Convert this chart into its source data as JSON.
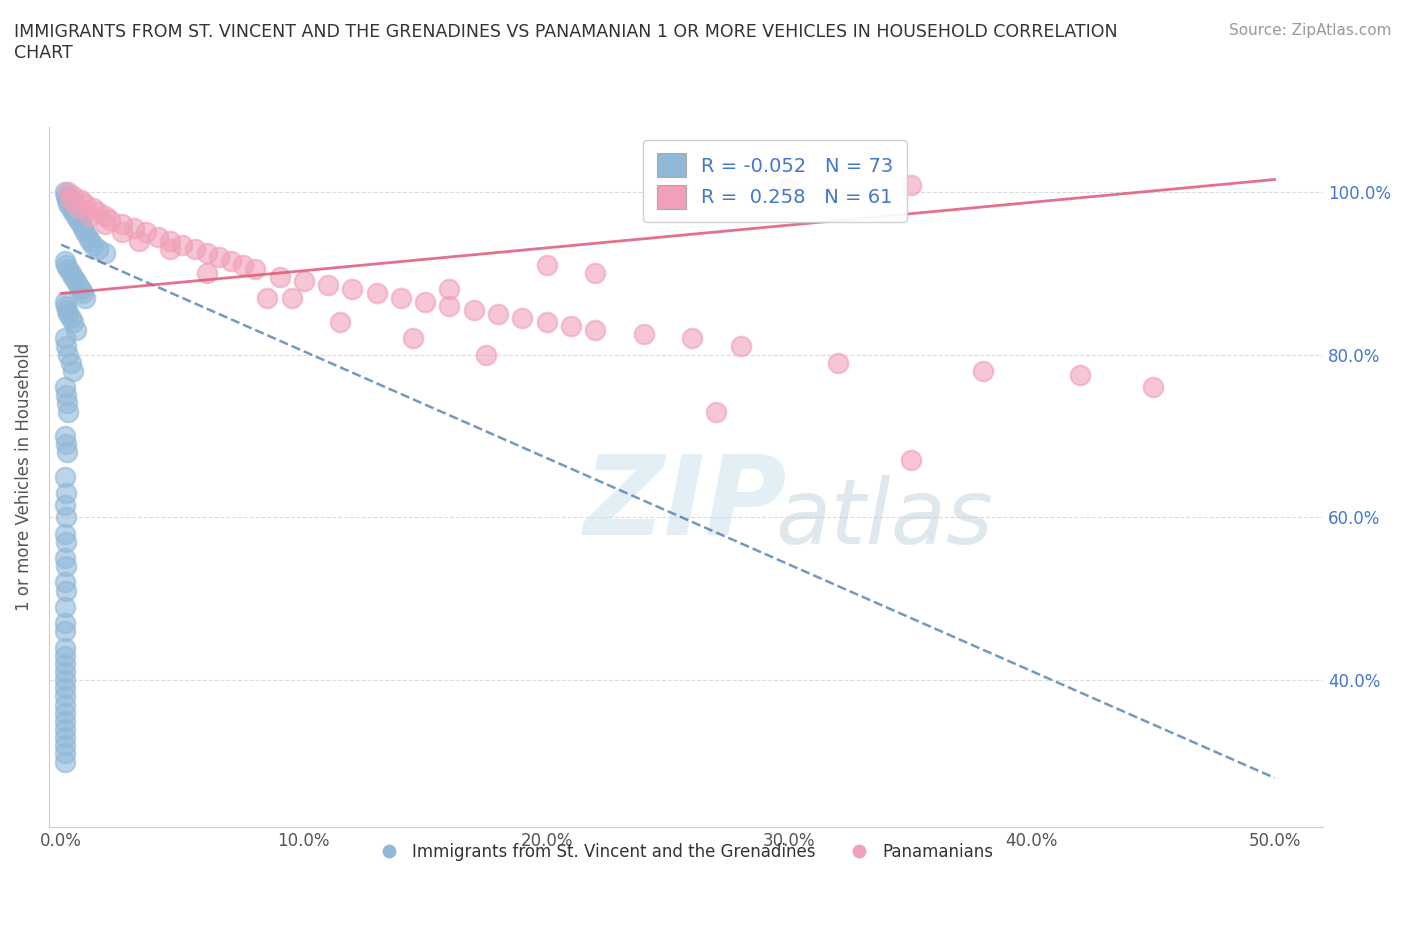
{
  "title": "IMMIGRANTS FROM ST. VINCENT AND THE GRENADINES VS PANAMANIAN 1 OR MORE VEHICLES IN HOUSEHOLD CORRELATION\nCHART",
  "source": "Source: ZipAtlas.com",
  "ylabel": "1 or more Vehicles in Household",
  "xlim": [
    -0.5,
    52
  ],
  "ylim": [
    22,
    108
  ],
  "xticks": [
    0,
    10,
    20,
    30,
    40,
    50
  ],
  "yticks": [
    40,
    60,
    80,
    100
  ],
  "ytick_labels": [
    "40.0%",
    "60.0%",
    "80.0%",
    "100.0%"
  ],
  "xtick_labels": [
    "0.0%",
    "10.0%",
    "20.0%",
    "30.0%",
    "40.0%",
    "50.0%"
  ],
  "blue_color": "#90b8d8",
  "pink_color": "#f0a0b8",
  "blue_line_color": "#4477aa",
  "pink_line_color": "#e05878",
  "R_blue": -0.052,
  "N_blue": 73,
  "R_pink": 0.258,
  "N_pink": 61,
  "legend_label_blue": "Immigrants from St. Vincent and the Grenadines",
  "legend_label_pink": "Panamanians",
  "blue_line_x0": 0,
  "blue_line_y0": 93.5,
  "blue_line_x1": 50,
  "blue_line_y1": 28.0,
  "pink_line_x0": 0,
  "pink_line_y0": 87.5,
  "pink_line_x1": 50,
  "pink_line_y1": 101.5,
  "blue_x": [
    0.15,
    0.2,
    0.25,
    0.3,
    0.4,
    0.5,
    0.6,
    0.7,
    0.8,
    0.9,
    1.0,
    1.1,
    1.2,
    1.3,
    1.5,
    1.8,
    0.15,
    0.2,
    0.3,
    0.4,
    0.5,
    0.6,
    0.7,
    0.8,
    0.9,
    1.0,
    0.15,
    0.2,
    0.25,
    0.3,
    0.4,
    0.5,
    0.6,
    0.15,
    0.2,
    0.3,
    0.4,
    0.5,
    0.15,
    0.2,
    0.25,
    0.3,
    0.15,
    0.2,
    0.25,
    0.15,
    0.2,
    0.15,
    0.2,
    0.15,
    0.2,
    0.15,
    0.2,
    0.15,
    0.2,
    0.15,
    0.15,
    0.15,
    0.15,
    0.15,
    0.15,
    0.15,
    0.15,
    0.15,
    0.15,
    0.15,
    0.15,
    0.15,
    0.15,
    0.15,
    0.15,
    0.15,
    0.15
  ],
  "blue_y": [
    100.0,
    99.5,
    99.0,
    98.5,
    98.0,
    97.5,
    97.0,
    96.5,
    96.0,
    95.5,
    95.0,
    94.5,
    94.0,
    93.5,
    93.0,
    92.5,
    91.5,
    91.0,
    90.5,
    90.0,
    89.5,
    89.0,
    88.5,
    88.0,
    87.5,
    87.0,
    86.5,
    86.0,
    85.5,
    85.0,
    84.5,
    84.0,
    83.0,
    82.0,
    81.0,
    80.0,
    79.0,
    78.0,
    76.0,
    75.0,
    74.0,
    73.0,
    70.0,
    69.0,
    68.0,
    65.0,
    63.0,
    61.5,
    60.0,
    58.0,
    57.0,
    55.0,
    54.0,
    52.0,
    51.0,
    49.0,
    47.0,
    46.0,
    44.0,
    43.0,
    42.0,
    41.0,
    40.0,
    39.0,
    38.0,
    37.0,
    36.0,
    35.0,
    34.0,
    33.0,
    32.0,
    31.0,
    30.0
  ],
  "pink_x": [
    0.3,
    0.5,
    0.8,
    1.0,
    1.3,
    1.5,
    1.8,
    2.0,
    2.5,
    3.0,
    3.5,
    4.0,
    4.5,
    5.0,
    5.5,
    6.0,
    6.5,
    7.0,
    7.5,
    8.0,
    9.0,
    10.0,
    11.0,
    12.0,
    13.0,
    14.0,
    15.0,
    16.0,
    17.0,
    18.0,
    19.0,
    20.0,
    21.0,
    22.0,
    24.0,
    26.0,
    28.0,
    30.0,
    32.0,
    35.0,
    38.0,
    42.0,
    45.0,
    0.4,
    0.7,
    1.2,
    1.8,
    2.5,
    3.2,
    4.5,
    6.0,
    8.5,
    11.5,
    14.5,
    17.5,
    22.0,
    27.0,
    35.0,
    20.0,
    16.0,
    9.5
  ],
  "pink_y": [
    100.0,
    99.5,
    99.0,
    98.5,
    98.0,
    97.5,
    97.0,
    96.5,
    96.0,
    95.5,
    95.0,
    94.5,
    94.0,
    93.5,
    93.0,
    92.5,
    92.0,
    91.5,
    91.0,
    90.5,
    89.5,
    89.0,
    88.5,
    88.0,
    87.5,
    87.0,
    86.5,
    86.0,
    85.5,
    85.0,
    84.5,
    84.0,
    83.5,
    83.0,
    82.5,
    82.0,
    81.0,
    100.5,
    79.0,
    100.8,
    78.0,
    77.5,
    76.0,
    99.0,
    98.0,
    97.0,
    96.0,
    95.0,
    94.0,
    93.0,
    90.0,
    87.0,
    84.0,
    82.0,
    80.0,
    90.0,
    73.0,
    67.0,
    91.0,
    88.0,
    87.0
  ]
}
